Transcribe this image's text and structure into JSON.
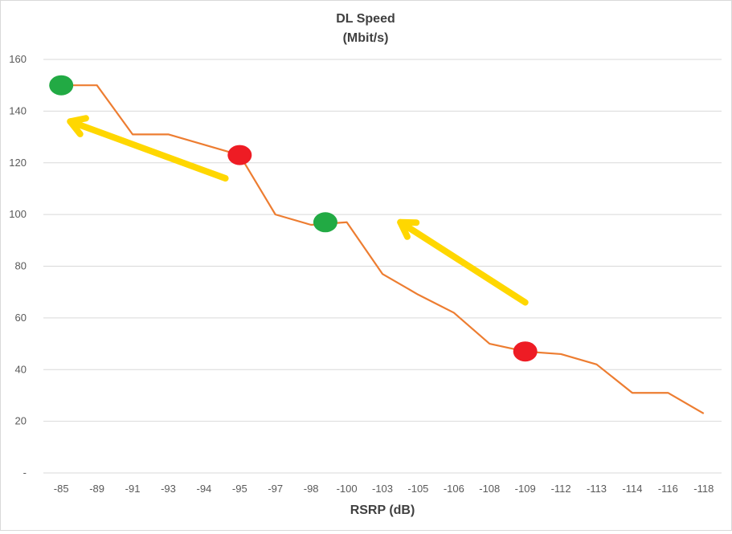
{
  "chart_data": {
    "type": "line",
    "title": "DL Speed",
    "subtitle": "(Mbit/s)",
    "xlabel": "RSRP (dB)",
    "ylabel": "",
    "categories": [
      "-85",
      "-89",
      "-91",
      "-93",
      "-94",
      "-95",
      "-97",
      "-98",
      "-100",
      "-103",
      "-105",
      "-106",
      "-108",
      "-109",
      "-112",
      "-113",
      "-114",
      "-116",
      "-118"
    ],
    "yticks": [
      "-",
      "20",
      "40",
      "60",
      "80",
      "100",
      "120",
      "140",
      "160"
    ],
    "ylim": [
      0,
      160
    ],
    "grid": true,
    "legend": "none",
    "series": [
      {
        "values": [
          150,
          150,
          131,
          131,
          127,
          123,
          100,
          96,
          97,
          77,
          69,
          62,
          50,
          47,
          46,
          42,
          31,
          31,
          23
        ],
        "color": "#ED7D31"
      }
    ],
    "markers": [
      {
        "category": "-85",
        "value": 150,
        "color": "#22AA44"
      },
      {
        "category": "-95",
        "value": 123,
        "color": "#EE1C24"
      },
      {
        "category": "-98",
        "x_offset": 0.4,
        "value": 97,
        "color": "#22AA44"
      },
      {
        "category": "-109",
        "value": 47,
        "color": "#EE1C24"
      }
    ],
    "annotations": [
      {
        "type": "arrow",
        "color": "#FFD700",
        "from": {
          "category_index": 4.6,
          "value": 114
        },
        "to": {
          "category_index": 0.25,
          "value": 136
        }
      },
      {
        "type": "arrow",
        "color": "#FFD700",
        "from": {
          "category_index": 13.0,
          "value": 66
        },
        "to": {
          "category_index": 9.5,
          "value": 97
        }
      }
    ]
  }
}
